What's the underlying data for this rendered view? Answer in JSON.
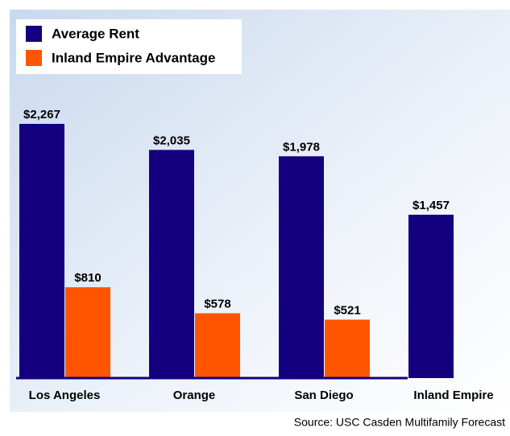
{
  "chart_data": {
    "type": "bar",
    "categories": [
      "Los Angeles",
      "Orange",
      "San Diego",
      "Inland Empire"
    ],
    "series": [
      {
        "name": "Average Rent",
        "color": "#14007f",
        "values": [
          2267,
          2035,
          1978,
          1457
        ],
        "value_labels": [
          "$2,267",
          "$2,035",
          "$1,978",
          "$1,457"
        ]
      },
      {
        "name": "Inland Empire Advantage",
        "color": "#ff5500",
        "values": [
          810,
          578,
          521,
          null
        ],
        "value_labels": [
          "$810",
          "$578",
          "$521",
          null
        ]
      }
    ],
    "source": "Source:  USC Casden Multifamily Forecast"
  }
}
